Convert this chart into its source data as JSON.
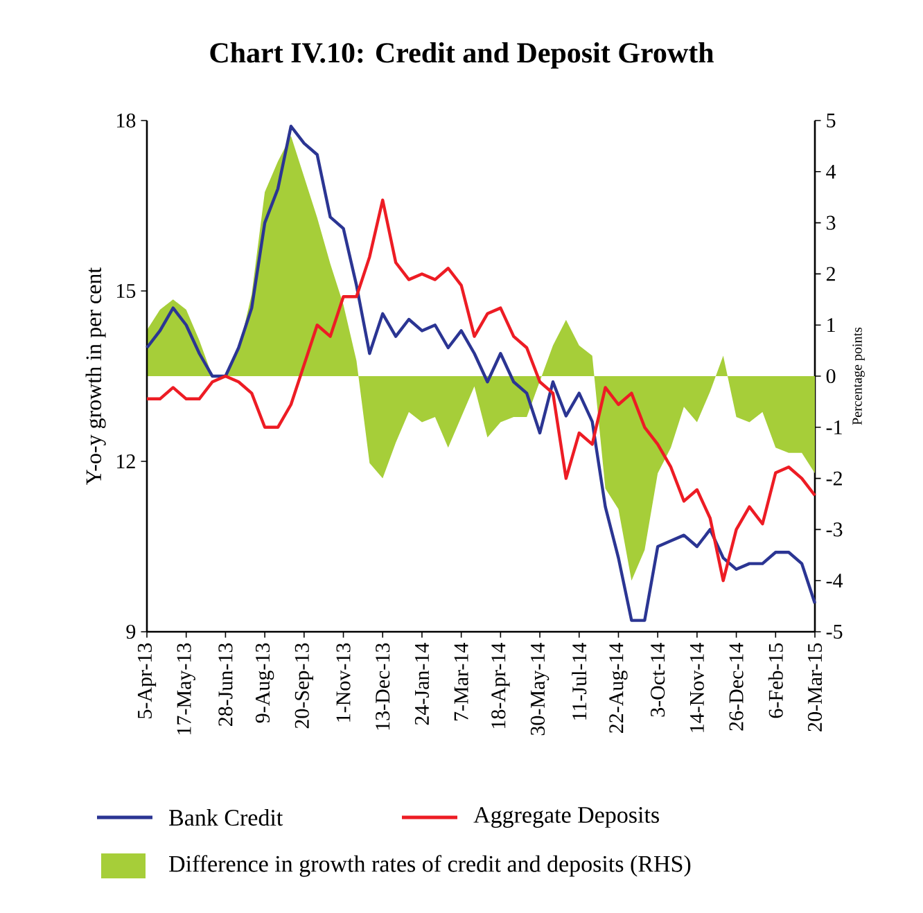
{
  "chart_data": {
    "type": "line",
    "title": "Chart IV.10: Credit and Deposit Growth",
    "ylabel": "Y-o-y growth in per cent",
    "y2label": "Percentage points",
    "categories": [
      "5-Apr-13",
      null,
      null,
      "17-May-13",
      null,
      null,
      "28-Jun-13",
      null,
      null,
      "9-Aug-13",
      null,
      null,
      "20-Sep-13",
      null,
      null,
      "1-Nov-13",
      null,
      null,
      "13-Dec-13",
      null,
      null,
      "24-Jan-14",
      null,
      null,
      "7-Mar-14",
      null,
      null,
      "18-Apr-14",
      null,
      null,
      "30-May-14",
      null,
      null,
      "11-Jul-14",
      null,
      null,
      "22-Aug-14",
      null,
      null,
      "3-Oct-14",
      null,
      null,
      "14-Nov-14",
      null,
      null,
      "26-Dec-14",
      null,
      null,
      "6-Feb-15",
      null,
      null,
      "20-Mar-15"
    ],
    "series": [
      {
        "name": "Difference in growth rates of credit and deposits (RHS)",
        "type": "area",
        "axis": "y2",
        "color": "#a6ce39",
        "values": [
          0.9,
          1.3,
          1.5,
          1.3,
          0.7,
          0.0,
          0.0,
          0.5,
          1.6,
          3.6,
          4.2,
          4.7,
          3.9,
          3.1,
          2.2,
          1.4,
          0.3,
          -1.7,
          -2.0,
          -1.3,
          -0.7,
          -0.9,
          -0.8,
          -1.4,
          -0.8,
          -0.2,
          -1.2,
          -0.9,
          -0.8,
          -0.8,
          -0.1,
          0.6,
          1.1,
          0.6,
          0.4,
          -2.2,
          -2.6,
          -4.0,
          -3.4,
          -1.9,
          -1.4,
          -0.6,
          -0.9,
          -0.3,
          0.4,
          -0.8,
          -0.9,
          -0.7,
          -1.4,
          -1.5,
          -1.5,
          -1.9
        ]
      },
      {
        "name": "Bank Credit",
        "color": "#2b3593",
        "values": [
          14.0,
          14.3,
          14.7,
          14.4,
          13.9,
          13.5,
          13.5,
          14.0,
          14.7,
          16.2,
          16.8,
          17.9,
          17.6,
          17.4,
          16.3,
          16.1,
          15.1,
          13.9,
          14.6,
          14.2,
          14.5,
          14.3,
          14.4,
          14.0,
          14.3,
          13.9,
          13.4,
          13.9,
          13.4,
          13.2,
          12.5,
          13.4,
          12.8,
          13.2,
          12.7,
          11.2,
          10.3,
          9.2,
          9.2,
          10.5,
          10.6,
          10.7,
          10.5,
          10.8,
          10.3,
          10.1,
          10.2,
          10.2,
          10.4,
          10.4,
          10.2,
          9.5
        ]
      },
      {
        "name": "Aggregate Deposits",
        "color": "#ed1c24",
        "values": [
          13.1,
          13.1,
          13.3,
          13.1,
          13.1,
          13.4,
          13.5,
          13.4,
          13.2,
          12.6,
          12.6,
          13.0,
          13.7,
          14.4,
          14.2,
          14.9,
          14.9,
          15.6,
          16.6,
          15.5,
          15.2,
          15.3,
          15.2,
          15.4,
          15.1,
          14.2,
          14.6,
          14.7,
          14.2,
          14.0,
          13.4,
          13.2,
          11.7,
          12.5,
          12.3,
          13.3,
          13.0,
          13.2,
          12.6,
          12.3,
          11.9,
          11.3,
          11.5,
          11.0,
          9.9,
          10.8,
          11.2,
          10.9,
          11.8,
          11.9,
          11.7,
          11.4
        ]
      }
    ],
    "ylim": [
      9,
      18
    ],
    "yticks": [
      9,
      12,
      15,
      18
    ],
    "y2lim": [
      -5,
      5
    ],
    "y2ticks": [
      -5,
      -4,
      -3,
      -2,
      -1,
      0,
      1,
      2,
      3,
      4,
      5
    ],
    "legend": "bottom"
  }
}
